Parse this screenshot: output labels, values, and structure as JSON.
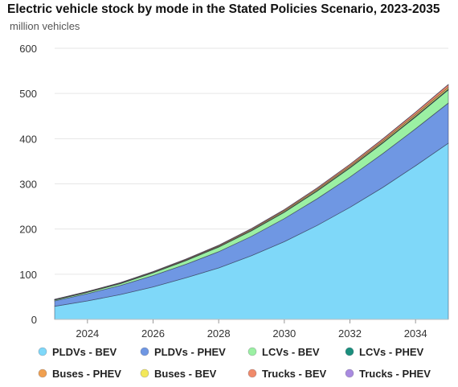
{
  "chart_data": {
    "type": "area",
    "stacked": true,
    "title": "Electric vehicle stock by mode in the Stated Policies Scenario, 2023-2035",
    "ylabel": "million vehicles",
    "xlabel": "",
    "x": [
      2023,
      2024,
      2025,
      2026,
      2027,
      2028,
      2029,
      2030,
      2031,
      2032,
      2033,
      2034,
      2035
    ],
    "xticks": [
      "2024",
      "2026",
      "2028",
      "2030",
      "2032",
      "2034"
    ],
    "xlim": [
      2023,
      2035
    ],
    "ylim": [
      0,
      600
    ],
    "yticks": [
      0,
      100,
      200,
      300,
      400,
      500,
      600
    ],
    "grid": true,
    "legend_position": "bottom",
    "series": [
      {
        "name": "PLDVs - BEV",
        "color": "#7fd8f9",
        "values": [
          29,
          41,
          55,
          72,
          92,
          114,
          141,
          172,
          208,
          248,
          292,
          340,
          390
        ]
      },
      {
        "name": "PLDVs - PHEV",
        "color": "#6f97e3",
        "values": [
          12,
          16,
          20,
          25,
          30,
          36,
          43,
          51,
          59,
          67,
          75,
          82,
          89
        ]
      },
      {
        "name": "LCVs - BEV",
        "color": "#9bf0a3",
        "values": [
          2,
          3,
          4,
          6,
          8,
          10,
          12,
          14,
          17,
          20,
          23,
          26,
          29
        ]
      },
      {
        "name": "LCVs - PHEV",
        "color": "#1b8f7d",
        "values": [
          0.3,
          0.4,
          0.5,
          0.6,
          0.7,
          0.8,
          0.9,
          1,
          1.1,
          1.2,
          1.3,
          1.4,
          1.5
        ]
      },
      {
        "name": "Buses - PHEV",
        "color": "#f0a050",
        "values": [
          0.1,
          0.1,
          0.1,
          0.2,
          0.2,
          0.2,
          0.3,
          0.3,
          0.3,
          0.4,
          0.4,
          0.5,
          0.5
        ]
      },
      {
        "name": "Buses - BEV",
        "color": "#f3e85a",
        "values": [
          0.7,
          0.8,
          1,
          1.2,
          1.4,
          1.6,
          1.9,
          2.2,
          2.5,
          2.8,
          3.1,
          3.4,
          3.7
        ]
      },
      {
        "name": "Trucks - BEV",
        "color": "#f08a6a",
        "values": [
          0.3,
          0.4,
          0.6,
          0.8,
          1.1,
          1.4,
          1.8,
          2.3,
          2.9,
          3.6,
          4.4,
          5.2,
          6
        ]
      },
      {
        "name": "Trucks - PHEV",
        "color": "#a98be0",
        "values": [
          0.05,
          0.05,
          0.1,
          0.1,
          0.1,
          0.15,
          0.2,
          0.2,
          0.25,
          0.3,
          0.3,
          0.35,
          0.4
        ]
      }
    ]
  }
}
